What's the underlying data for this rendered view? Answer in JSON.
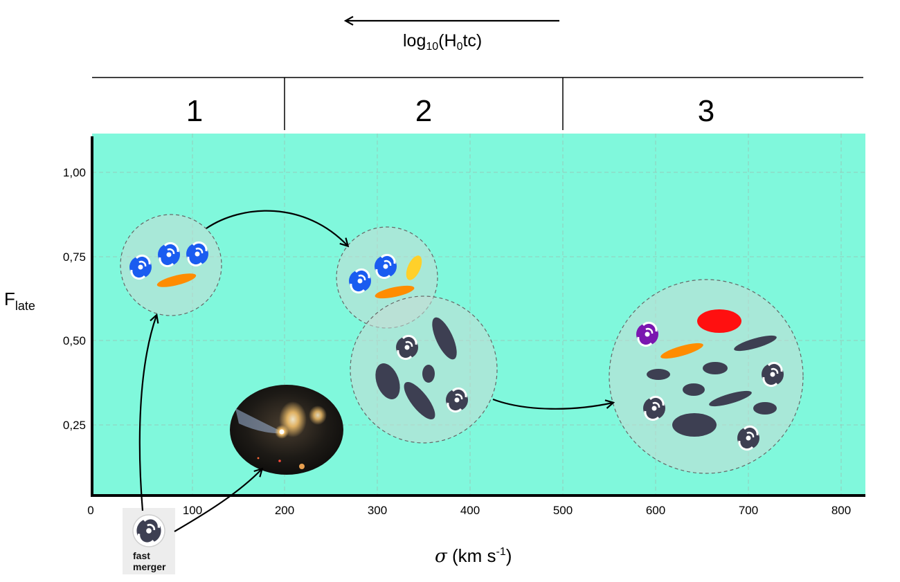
{
  "top_axis": {
    "label_main": "log",
    "label_sub1": "10",
    "label_mid": "(H",
    "label_sub2": "0",
    "label_end": "tc)"
  },
  "regions": [
    "1",
    "2",
    "3"
  ],
  "y_axis": {
    "label_main": "F",
    "label_sub": "late",
    "ticks": [
      "1,00",
      "0,75",
      "0,50",
      "0,25"
    ]
  },
  "x_axis": {
    "label_sigma": "σ",
    "label_rest": " (km s",
    "label_sup": "-1",
    "label_close": ")",
    "ticks": [
      "0",
      "100",
      "200",
      "300",
      "400",
      "500",
      "600",
      "700",
      "800"
    ]
  },
  "fast_merger": {
    "line1": "fast",
    "line2": "merger"
  },
  "colors": {
    "background": "#80f8dc",
    "spiral_blue": "#1a5cf0",
    "orange": "#ff8c00",
    "yellow": "#ffd02a",
    "red": "#ff1010",
    "purple": "#7a16b0",
    "dark": "#3d3f52"
  }
}
